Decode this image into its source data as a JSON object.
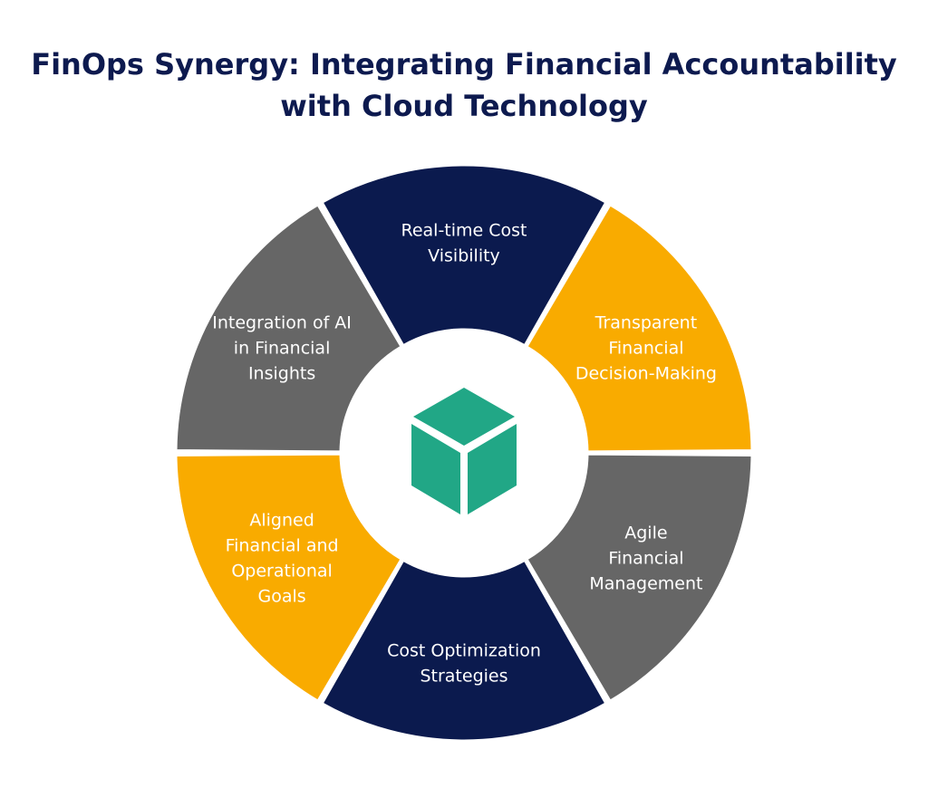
{
  "title": {
    "line1": "FinOps Synergy: Integrating Financial Accountability",
    "line2": "with Cloud Technology"
  },
  "colors": {
    "navy": "#0b1a4e",
    "amber": "#f9ab00",
    "gray": "#666666",
    "cube": "#21a786",
    "background": "#ffffff"
  },
  "center_icon": "cube-icon",
  "segments": [
    {
      "id": "real-time-cost-visibility",
      "color": "navy",
      "lines": [
        "Real-time Cost",
        "Visibility"
      ]
    },
    {
      "id": "transparent-financial-decision-making",
      "color": "amber",
      "lines": [
        "Transparent",
        "Financial",
        "Decision-Making"
      ]
    },
    {
      "id": "agile-financial-management",
      "color": "gray",
      "lines": [
        "Agile",
        "Financial",
        "Management"
      ]
    },
    {
      "id": "cost-optimization-strategies",
      "color": "navy",
      "lines": [
        "Cost Optimization",
        "Strategies"
      ]
    },
    {
      "id": "aligned-financial-and-operational-goals",
      "color": "amber",
      "lines": [
        "Aligned",
        "Financial and",
        "Operational",
        "Goals"
      ]
    },
    {
      "id": "integration-of-ai-in-financial-insights",
      "color": "gray",
      "lines": [
        "Integration of AI",
        "in Financial",
        "Insights"
      ]
    }
  ]
}
